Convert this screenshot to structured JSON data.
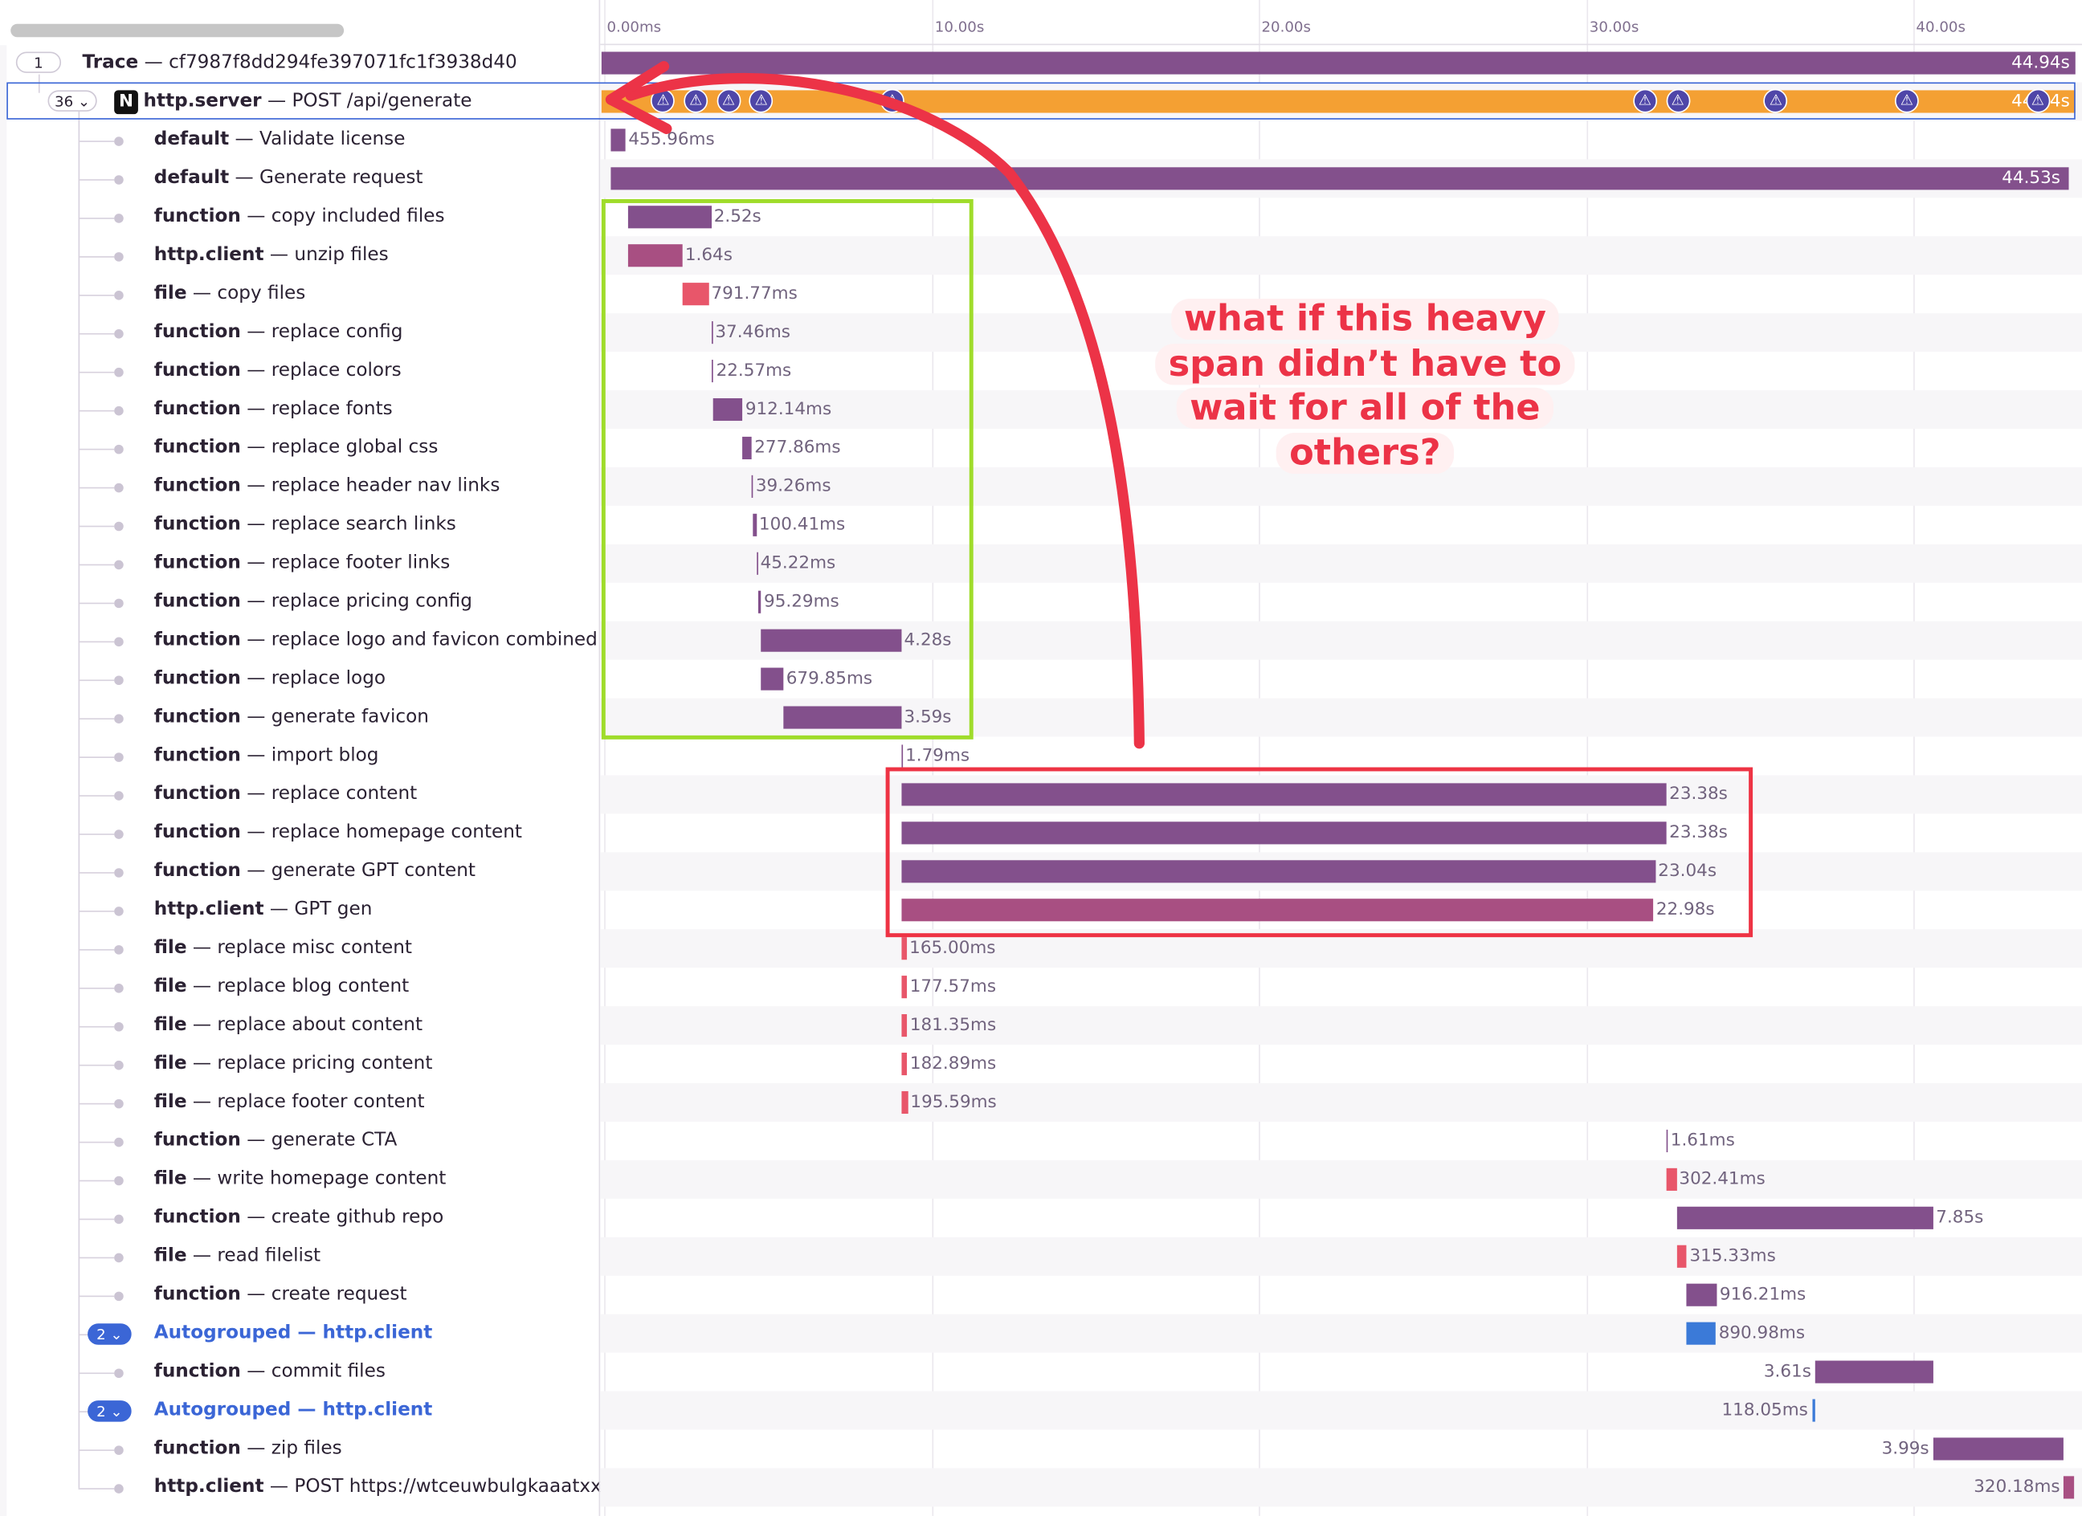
{
  "timeline": {
    "ticks": [
      "0.00ms",
      "10.00s",
      "20.00s",
      "30.00s",
      "40.00s"
    ]
  },
  "trace": {
    "count": "1",
    "label": "Trace",
    "id": "cf7987f8dd294fe397071fc1f3938d40",
    "duration": "44.94s"
  },
  "server": {
    "count": "36",
    "op": "http.server",
    "desc": "POST /api/generate",
    "duration": "44.94s",
    "bar_color": "#f4a033"
  },
  "spans": [
    {
      "op": "default",
      "desc": "Validate license",
      "duration": "455.96ms",
      "start_s": 0.2,
      "duration_s": 0.46,
      "color": "#83508c"
    },
    {
      "op": "default",
      "desc": "Generate request",
      "duration": "44.53s",
      "start_s": 0.2,
      "duration_s": 44.53,
      "color": "#83508c"
    },
    {
      "op": "function",
      "desc": "copy included files",
      "duration": "2.52s",
      "start_s": 0.75,
      "duration_s": 2.52,
      "color": "#83508c"
    },
    {
      "op": "http.client",
      "desc": "unzip files",
      "duration": "1.64s",
      "start_s": 0.75,
      "duration_s": 1.64,
      "color": "#a84f82"
    },
    {
      "op": "file",
      "desc": "copy files",
      "duration": "791.77ms",
      "start_s": 2.4,
      "duration_s": 0.79,
      "color": "#e8566a"
    },
    {
      "op": "function",
      "desc": "replace config",
      "duration": "37.46ms",
      "start_s": 3.27,
      "duration_s": 0.04,
      "color": "#83508c"
    },
    {
      "op": "function",
      "desc": "replace colors",
      "duration": "22.57ms",
      "start_s": 3.3,
      "duration_s": 0.02,
      "color": "#83508c"
    },
    {
      "op": "function",
      "desc": "replace fonts",
      "duration": "912.14ms",
      "start_s": 3.32,
      "duration_s": 0.91,
      "color": "#83508c"
    },
    {
      "op": "function",
      "desc": "replace global css",
      "duration": "277.86ms",
      "start_s": 4.23,
      "duration_s": 0.28,
      "color": "#83508c"
    },
    {
      "op": "function",
      "desc": "replace header nav links",
      "duration": "39.26ms",
      "start_s": 4.51,
      "duration_s": 0.04,
      "color": "#83508c"
    },
    {
      "op": "function",
      "desc": "replace search links",
      "duration": "100.41ms",
      "start_s": 4.55,
      "duration_s": 0.1,
      "color": "#83508c"
    },
    {
      "op": "function",
      "desc": "replace footer links",
      "duration": "45.22ms",
      "start_s": 4.65,
      "duration_s": 0.05,
      "color": "#83508c"
    },
    {
      "op": "function",
      "desc": "replace pricing config",
      "duration": "95.29ms",
      "start_s": 4.7,
      "duration_s": 0.1,
      "color": "#83508c"
    },
    {
      "op": "function",
      "desc": "replace logo and favicon combined",
      "duration": "4.28s",
      "start_s": 4.8,
      "duration_s": 4.28,
      "color": "#83508c"
    },
    {
      "op": "function",
      "desc": "replace logo",
      "duration": "679.85ms",
      "start_s": 4.8,
      "duration_s": 0.68,
      "color": "#83508c"
    },
    {
      "op": "function",
      "desc": "generate favicon",
      "duration": "3.59s",
      "start_s": 5.49,
      "duration_s": 3.59,
      "color": "#83508c"
    },
    {
      "op": "function",
      "desc": "import blog",
      "duration": "1.79ms",
      "start_s": 9.08,
      "duration_s": 0.002,
      "color": "#83508c"
    },
    {
      "op": "function",
      "desc": "replace content",
      "duration": "23.38s",
      "start_s": 9.08,
      "duration_s": 23.38,
      "color": "#83508c"
    },
    {
      "op": "function",
      "desc": "replace homepage content",
      "duration": "23.38s",
      "start_s": 9.08,
      "duration_s": 23.38,
      "color": "#83508c"
    },
    {
      "op": "function",
      "desc": "generate GPT content",
      "duration": "23.04s",
      "start_s": 9.08,
      "duration_s": 23.04,
      "color": "#83508c"
    },
    {
      "op": "http.client",
      "desc": "GPT gen",
      "duration": "22.98s",
      "start_s": 9.08,
      "duration_s": 22.98,
      "color": "#a84f82"
    },
    {
      "op": "file",
      "desc": "replace misc content",
      "duration": "165.00ms",
      "start_s": 9.08,
      "duration_s": 0.165,
      "color": "#e8566a"
    },
    {
      "op": "file",
      "desc": "replace blog content",
      "duration": "177.57ms",
      "start_s": 9.08,
      "duration_s": 0.178,
      "color": "#e8566a"
    },
    {
      "op": "file",
      "desc": "replace about content",
      "duration": "181.35ms",
      "start_s": 9.08,
      "duration_s": 0.181,
      "color": "#e8566a"
    },
    {
      "op": "file",
      "desc": "replace pricing content",
      "duration": "182.89ms",
      "start_s": 9.08,
      "duration_s": 0.183,
      "color": "#e8566a"
    },
    {
      "op": "file",
      "desc": "replace footer content",
      "duration": "195.59ms",
      "start_s": 9.08,
      "duration_s": 0.196,
      "color": "#e8566a"
    },
    {
      "op": "function",
      "desc": "generate CTA",
      "duration": "1.61ms",
      "start_s": 32.46,
      "duration_s": 0.002,
      "color": "#83508c"
    },
    {
      "op": "file",
      "desc": "write homepage content",
      "duration": "302.41ms",
      "start_s": 32.46,
      "duration_s": 0.3,
      "color": "#e8566a"
    },
    {
      "op": "function",
      "desc": "create github repo",
      "duration": "7.85s",
      "start_s": 32.76,
      "duration_s": 7.85,
      "color": "#83508c"
    },
    {
      "op": "file",
      "desc": "read filelist",
      "duration": "315.33ms",
      "start_s": 32.76,
      "duration_s": 0.32,
      "color": "#e8566a"
    },
    {
      "op": "function",
      "desc": "create request",
      "duration": "916.21ms",
      "start_s": 33.08,
      "duration_s": 0.92,
      "color": "#83508c"
    },
    {
      "op": "http.client",
      "desc": "Autogrouped — http.client",
      "auto": true,
      "count": "2",
      "duration": "890.98ms",
      "start_s": 33.08,
      "duration_s": 0.89,
      "color": "#3b7ad8"
    },
    {
      "op": "function",
      "desc": "commit files",
      "duration": "3.61s",
      "start_s": 37.0,
      "duration_s": 3.61,
      "color": "#83508c",
      "label_left": true
    },
    {
      "op": "http.client",
      "desc": "Autogrouped — http.client",
      "auto": true,
      "count": "2",
      "duration": "118.05ms",
      "start_s": 36.9,
      "duration_s": 0.1,
      "color": "#3b7ad8",
      "label_left": true
    },
    {
      "op": "function",
      "desc": "zip files",
      "duration": "3.99s",
      "start_s": 40.6,
      "duration_s": 3.99,
      "color": "#83508c",
      "label_left": true
    },
    {
      "op": "http.client",
      "desc": "POST https://wtceuwbulgkaaatxxmi",
      "duration": "320.18ms",
      "start_s": 44.6,
      "duration_s": 0.3,
      "color": "#a84f82",
      "label_left": true
    }
  ],
  "annotation": {
    "text": "what if this heavy span didn’t have to wait for all of the others?",
    "color": "#ec3347"
  }
}
